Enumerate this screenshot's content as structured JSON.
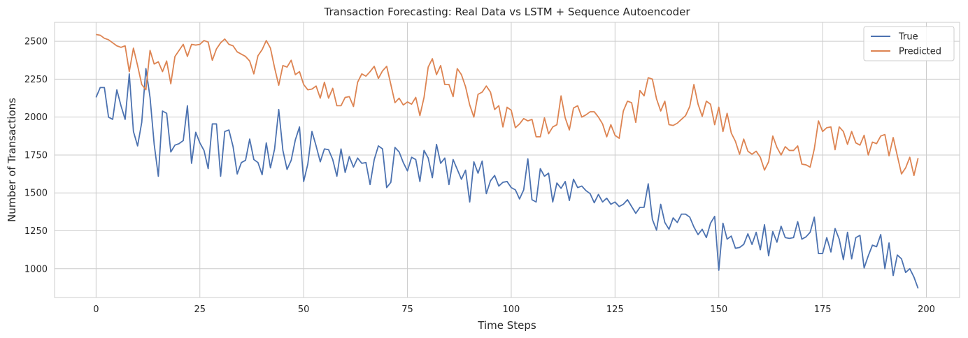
{
  "chart_data": {
    "type": "line",
    "title": "Transaction Forecasting: Real Data vs LSTM + Sequence Autoencoder",
    "xlabel": "Time Steps",
    "ylabel": "Number of Transactions",
    "xlim": [
      -10,
      208
    ],
    "ylim": [
      810,
      2625
    ],
    "xticks": [
      0,
      25,
      50,
      75,
      100,
      125,
      150,
      175,
      200
    ],
    "yticks": [
      1000,
      1250,
      1500,
      1750,
      2000,
      2250,
      2500
    ],
    "grid": true,
    "legend_position": "top-right",
    "series": [
      {
        "name": "True",
        "color": "#4c72b0",
        "values": [
          2130,
          2195,
          2195,
          2000,
          1985,
          2180,
          2075,
          1985,
          2285,
          1905,
          1810,
          1965,
          2320,
          2130,
          1820,
          1610,
          2040,
          2025,
          1770,
          1815,
          1825,
          1845,
          2075,
          1695,
          1900,
          1830,
          1780,
          1660,
          1955,
          1955,
          1610,
          1905,
          1915,
          1805,
          1625,
          1700,
          1715,
          1855,
          1720,
          1700,
          1620,
          1830,
          1665,
          1790,
          2050,
          1780,
          1655,
          1715,
          1850,
          1935,
          1575,
          1690,
          1905,
          1810,
          1705,
          1790,
          1785,
          1720,
          1610,
          1790,
          1635,
          1740,
          1670,
          1730,
          1695,
          1700,
          1555,
          1720,
          1810,
          1790,
          1535,
          1570,
          1800,
          1770,
          1700,
          1645,
          1735,
          1720,
          1575,
          1780,
          1730,
          1600,
          1820,
          1695,
          1730,
          1555,
          1720,
          1655,
          1590,
          1650,
          1440,
          1705,
          1630,
          1710,
          1495,
          1580,
          1615,
          1545,
          1570,
          1575,
          1535,
          1520,
          1460,
          1520,
          1725,
          1455,
          1440,
          1660,
          1610,
          1630,
          1440,
          1565,
          1530,
          1575,
          1450,
          1590,
          1535,
          1545,
          1515,
          1495,
          1435,
          1490,
          1440,
          1465,
          1425,
          1440,
          1410,
          1425,
          1455,
          1410,
          1365,
          1405,
          1405,
          1560,
          1325,
          1255,
          1425,
          1305,
          1260,
          1335,
          1305,
          1360,
          1360,
          1340,
          1275,
          1225,
          1260,
          1205,
          1300,
          1345,
          990,
          1300,
          1195,
          1215,
          1135,
          1140,
          1160,
          1230,
          1160,
          1240,
          1125,
          1290,
          1085,
          1245,
          1175,
          1280,
          1205,
          1200,
          1205,
          1310,
          1195,
          1210,
          1240,
          1340,
          1100,
          1100,
          1205,
          1110,
          1265,
          1195,
          1060,
          1240,
          1065,
          1205,
          1220,
          1005,
          1085,
          1155,
          1145,
          1225,
          1000,
          1170,
          955,
          1090,
          1065,
          975,
          1000,
          945,
          870
        ]
      },
      {
        "name": "Predicted",
        "color": "#dd8452",
        "values": [
          2545,
          2540,
          2520,
          2510,
          2490,
          2470,
          2460,
          2470,
          2300,
          2455,
          2340,
          2215,
          2180,
          2440,
          2350,
          2365,
          2300,
          2370,
          2220,
          2400,
          2440,
          2480,
          2400,
          2480,
          2475,
          2480,
          2505,
          2495,
          2375,
          2450,
          2490,
          2515,
          2480,
          2470,
          2430,
          2415,
          2400,
          2370,
          2285,
          2405,
          2445,
          2505,
          2455,
          2325,
          2210,
          2340,
          2330,
          2375,
          2280,
          2300,
          2215,
          2180,
          2185,
          2205,
          2125,
          2230,
          2125,
          2190,
          2075,
          2075,
          2130,
          2135,
          2070,
          2230,
          2285,
          2270,
          2300,
          2335,
          2255,
          2305,
          2335,
          2215,
          2095,
          2125,
          2080,
          2100,
          2085,
          2130,
          2010,
          2130,
          2330,
          2385,
          2280,
          2340,
          2215,
          2215,
          2135,
          2320,
          2280,
          2200,
          2080,
          2000,
          2150,
          2165,
          2205,
          2165,
          2050,
          2075,
          1935,
          2065,
          2045,
          1930,
          1955,
          1990,
          1975,
          1985,
          1870,
          1870,
          1995,
          1890,
          1935,
          1950,
          2140,
          1995,
          1915,
          2060,
          2075,
          2000,
          2015,
          2035,
          2035,
          2000,
          1955,
          1870,
          1950,
          1880,
          1860,
          2040,
          2105,
          2095,
          1965,
          2175,
          2140,
          2260,
          2250,
          2120,
          2040,
          2105,
          1950,
          1945,
          1960,
          1985,
          2010,
          2070,
          2215,
          2085,
          2005,
          2105,
          2085,
          1950,
          2065,
          1905,
          2025,
          1895,
          1840,
          1755,
          1855,
          1775,
          1755,
          1775,
          1735,
          1650,
          1705,
          1875,
          1800,
          1750,
          1805,
          1780,
          1780,
          1810,
          1690,
          1685,
          1670,
          1790,
          1975,
          1905,
          1930,
          1935,
          1785,
          1935,
          1905,
          1820,
          1905,
          1830,
          1815,
          1880,
          1750,
          1835,
          1825,
          1875,
          1885,
          1745,
          1865,
          1745,
          1625,
          1665,
          1735,
          1615,
          1730
        ]
      }
    ]
  }
}
